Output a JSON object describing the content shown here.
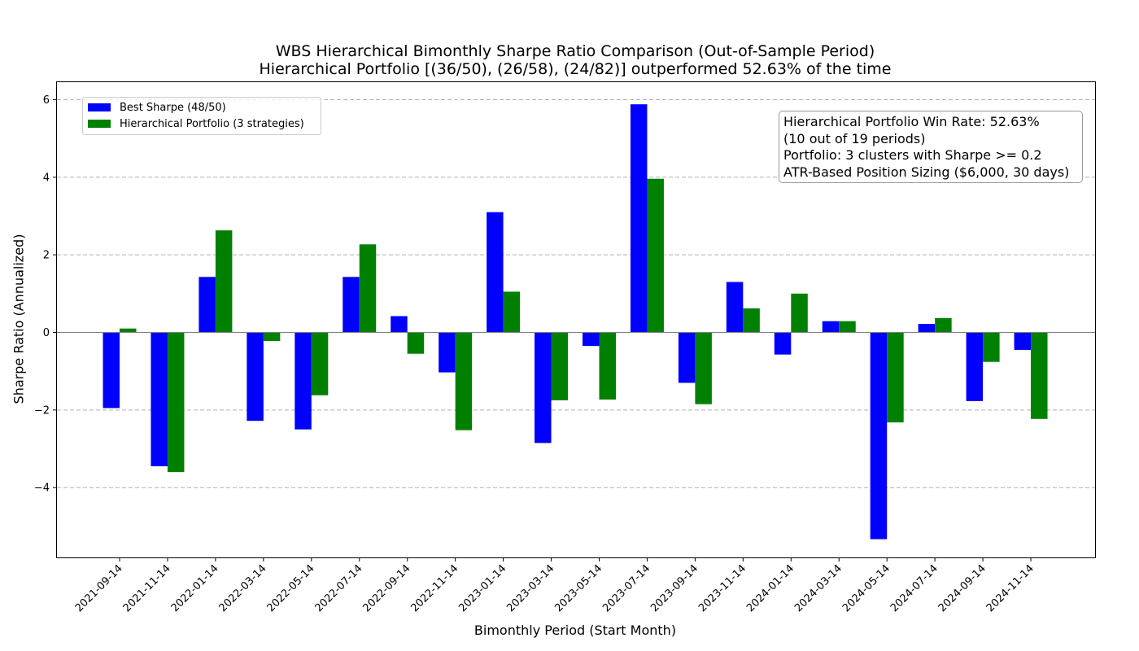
{
  "chart_data": {
    "type": "bar",
    "title": "WBS Hierarchical Bimonthly Sharpe Ratio Comparison (Out-of-Sample Period)",
    "subtitle": "Hierarchical Portfolio [(36/50), (26/58), (24/82)] outperformed 52.63% of the time",
    "xlabel": "Bimonthly Period (Start Month)",
    "ylabel": "Sharpe Ratio (Annualized)",
    "ylim": [
      -5.8,
      6.45
    ],
    "yticks": [
      -4,
      -2,
      0,
      2,
      4,
      6
    ],
    "ytick_labels": [
      "−4",
      "−2",
      "0",
      "2",
      "4",
      "6"
    ],
    "grid": "y-dashed",
    "legend_position": "top-left",
    "categories": [
      "2021-09-14",
      "2021-11-14",
      "2022-01-14",
      "2022-03-14",
      "2022-05-14",
      "2022-07-14",
      "2022-09-14",
      "2022-11-14",
      "2023-01-14",
      "2023-03-14",
      "2023-05-14",
      "2023-07-14",
      "2023-09-14",
      "2023-11-14",
      "2024-01-14",
      "2024-03-14",
      "2024-05-14",
      "2024-07-14",
      "2024-09-14",
      "2024-11-14"
    ],
    "series": [
      {
        "name": "Best Sharpe (48/50)",
        "color": "#0000ff",
        "values": [
          -1.95,
          -3.45,
          1.43,
          -2.28,
          -2.5,
          1.43,
          0.42,
          -1.03,
          3.1,
          -2.85,
          -0.35,
          5.88,
          -1.3,
          1.3,
          -0.57,
          0.29,
          -5.33,
          0.22,
          -1.77,
          -0.45
        ]
      },
      {
        "name": "Hierarchical Portfolio (3 strategies)",
        "color": "#008000",
        "values": [
          0.1,
          -3.6,
          2.63,
          -0.22,
          -1.62,
          2.27,
          -0.55,
          -2.52,
          1.05,
          -1.75,
          -1.73,
          3.96,
          -1.85,
          0.62,
          1.0,
          0.29,
          -2.32,
          0.37,
          -0.76,
          -2.23
        ]
      }
    ],
    "annotation": [
      "Hierarchical Portfolio Win Rate: 52.63%",
      "(10 out of 19 periods)",
      "Portfolio: 3 clusters with Sharpe >= 0.2",
      "ATR-Based Position Sizing ($6,000, 30 days)"
    ]
  }
}
